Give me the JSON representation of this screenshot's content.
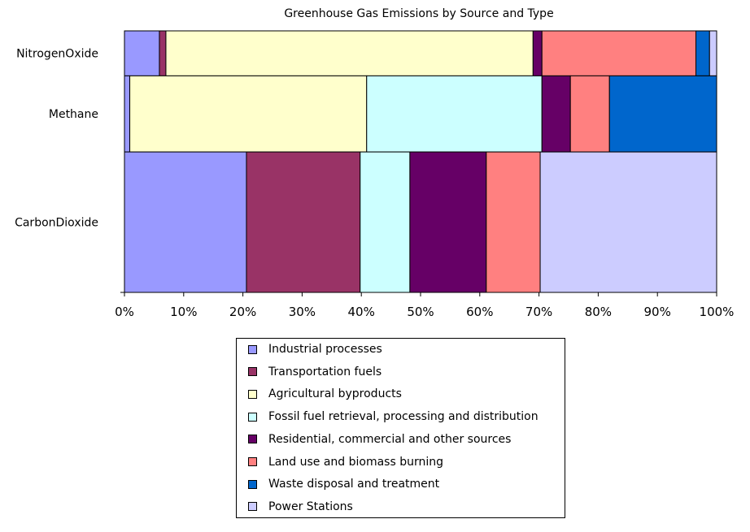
{
  "chart_data": {
    "type": "bar",
    "orientation": "horizontal",
    "stacking": "percent",
    "title": "Greenhouse Gas Emissions by Source and Type",
    "xlabel": "",
    "ylabel": "",
    "xlim": [
      0,
      100
    ],
    "x_ticks": [
      "0%",
      "10%",
      "20%",
      "30%",
      "40%",
      "50%",
      "60%",
      "70%",
      "80%",
      "90%",
      "100%"
    ],
    "legend_placement": "bottom",
    "grid": false,
    "categories": [
      "NitrogenOxide",
      "Methane",
      "CarbonDioxide"
    ],
    "category_widths": [
      17.2,
      29.1,
      53.7
    ],
    "series": [
      {
        "name": "Industrial processes",
        "color": "#9999ff",
        "values": [
          5.9,
          0.9,
          20.6
        ]
      },
      {
        "name": "Transportation fuels",
        "color": "#993366",
        "values": [
          1.1,
          0.0,
          19.2
        ]
      },
      {
        "name": "Agricultural byproducts",
        "color": "#ffffcc",
        "values": [
          62.0,
          40.0,
          0.0
        ]
      },
      {
        "name": "Fossil fuel retrieval, processing and distribution",
        "color": "#ccffff",
        "values": [
          0.0,
          29.6,
          8.4
        ]
      },
      {
        "name": "Residential, commercial and other sources",
        "color": "#660066",
        "values": [
          1.5,
          4.8,
          12.9
        ]
      },
      {
        "name": "Land use and biomass burning",
        "color": "#ff8080",
        "values": [
          26.0,
          6.6,
          9.1
        ]
      },
      {
        "name": "Waste disposal and treatment",
        "color": "#0066cc",
        "values": [
          2.3,
          18.1,
          0.0
        ]
      },
      {
        "name": "Power Stations",
        "color": "#ccccff",
        "values": [
          1.2,
          0.0,
          29.8
        ]
      }
    ]
  }
}
